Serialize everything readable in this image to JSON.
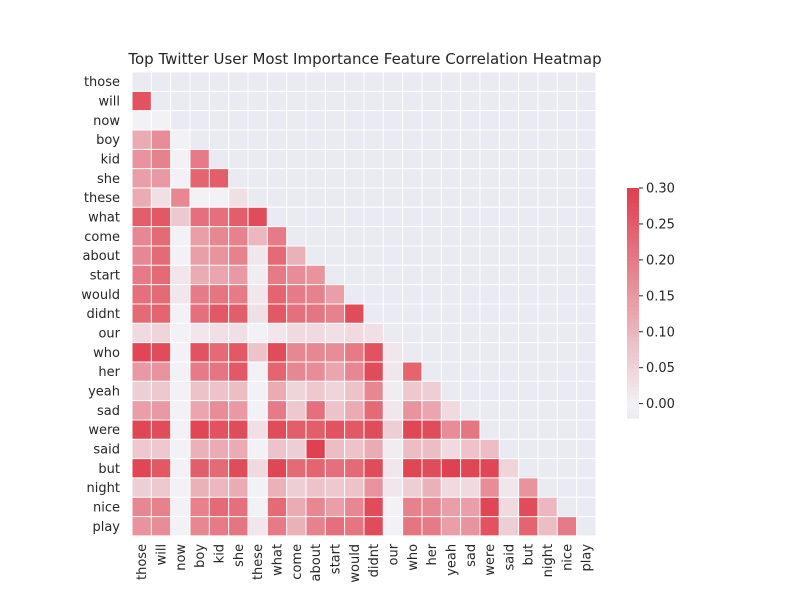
{
  "chart_data": {
    "type": "heatmap",
    "title": "Top Twitter User Most Importance Feature Correlation Heatmap",
    "labels": [
      "those",
      "will",
      "now",
      "boy",
      "kid",
      "she",
      "these",
      "what",
      "come",
      "about",
      "start",
      "would",
      "didnt",
      "our",
      "who",
      "her",
      "yeah",
      "sad",
      "were",
      "said",
      "but",
      "night",
      "nice",
      "play"
    ],
    "mask": "upper-triangle-including-diagonal",
    "colorbar": {
      "min": -0.02,
      "max": 0.3,
      "ticks": [
        "0.30",
        "0.25",
        "0.20",
        "0.15",
        "0.10",
        "0.05",
        "0.00"
      ],
      "tick_values": [
        0.3,
        0.25,
        0.2,
        0.15,
        0.1,
        0.05,
        0.0
      ]
    },
    "colors": {
      "low": "#eaeaf2",
      "mid": "#f2f2f6",
      "high": "#e0404f",
      "mask": "#eaeaf2",
      "grid": "#ffffff"
    },
    "rows": [
      [],
      [
        0.27
      ],
      [
        0.0,
        0.0
      ],
      [
        0.12,
        0.17,
        0.0
      ],
      [
        0.16,
        0.19,
        0.0,
        0.2
      ],
      [
        0.14,
        0.15,
        0.0,
        0.24,
        0.25
      ],
      [
        0.12,
        0.03,
        0.18,
        0.0,
        0.0,
        0.03
      ],
      [
        0.25,
        0.26,
        0.07,
        0.22,
        0.22,
        0.25,
        0.28
      ],
      [
        0.18,
        0.23,
        0.0,
        0.14,
        0.18,
        0.19,
        0.1,
        0.2
      ],
      [
        0.18,
        0.23,
        0.0,
        0.14,
        0.16,
        0.19,
        0.02,
        0.23,
        0.11
      ],
      [
        0.2,
        0.23,
        0.02,
        0.12,
        0.13,
        0.15,
        0.01,
        0.2,
        0.17,
        0.16
      ],
      [
        0.22,
        0.23,
        0.02,
        0.2,
        0.21,
        0.2,
        0.02,
        0.24,
        0.2,
        0.19,
        0.14
      ],
      [
        0.23,
        0.24,
        0.0,
        0.22,
        0.26,
        0.25,
        0.03,
        0.26,
        0.22,
        0.21,
        0.19,
        0.28
      ],
      [
        0.04,
        0.05,
        0.0,
        0.02,
        0.03,
        0.03,
        0.0,
        0.02,
        0.04,
        0.04,
        0.03,
        0.04,
        0.03
      ],
      [
        0.29,
        0.28,
        0.0,
        0.27,
        0.23,
        0.26,
        0.08,
        0.28,
        0.18,
        0.18,
        0.17,
        0.2,
        0.27,
        0.02
      ],
      [
        0.15,
        0.16,
        0.0,
        0.2,
        0.21,
        0.26,
        0.0,
        0.24,
        0.18,
        0.17,
        0.13,
        0.18,
        0.28,
        0.02,
        0.24
      ],
      [
        0.06,
        0.07,
        0.0,
        0.08,
        0.08,
        0.09,
        0.0,
        0.12,
        0.05,
        0.07,
        0.05,
        0.08,
        0.18,
        0.01,
        0.07,
        0.06
      ],
      [
        0.14,
        0.15,
        0.0,
        0.13,
        0.17,
        0.15,
        0.0,
        0.2,
        0.07,
        0.22,
        0.08,
        0.12,
        0.23,
        0.02,
        0.16,
        0.13,
        0.04
      ],
      [
        0.29,
        0.28,
        0.0,
        0.29,
        0.27,
        0.28,
        0.03,
        0.28,
        0.25,
        0.25,
        0.27,
        0.26,
        0.28,
        0.06,
        0.29,
        0.28,
        0.17,
        0.21
      ],
      [
        0.07,
        0.07,
        0.0,
        0.11,
        0.12,
        0.12,
        0.0,
        0.08,
        0.06,
        0.3,
        0.09,
        0.08,
        0.12,
        0.01,
        0.09,
        0.09,
        0.04,
        0.08,
        0.09
      ],
      [
        0.29,
        0.26,
        0.0,
        0.25,
        0.23,
        0.28,
        0.04,
        0.29,
        0.23,
        0.24,
        0.22,
        0.23,
        0.28,
        0.02,
        0.29,
        0.28,
        0.3,
        0.29,
        0.29,
        0.05
      ],
      [
        0.06,
        0.07,
        0.0,
        0.11,
        0.1,
        0.12,
        0.0,
        0.11,
        0.06,
        0.08,
        0.07,
        0.08,
        0.16,
        0.02,
        0.06,
        0.11,
        0.04,
        0.04,
        0.17,
        0.02,
        0.16
      ],
      [
        0.18,
        0.19,
        0.0,
        0.19,
        0.23,
        0.22,
        0.0,
        0.23,
        0.12,
        0.18,
        0.14,
        0.18,
        0.28,
        0.0,
        0.19,
        0.18,
        0.14,
        0.14,
        0.29,
        0.04,
        0.28,
        0.1
      ],
      [
        0.16,
        0.17,
        0.0,
        0.18,
        0.2,
        0.21,
        0.02,
        0.2,
        0.11,
        0.19,
        0.22,
        0.21,
        0.28,
        0.0,
        0.21,
        0.2,
        0.14,
        0.16,
        0.27,
        0.06,
        0.24,
        0.09,
        0.2
      ]
    ]
  }
}
